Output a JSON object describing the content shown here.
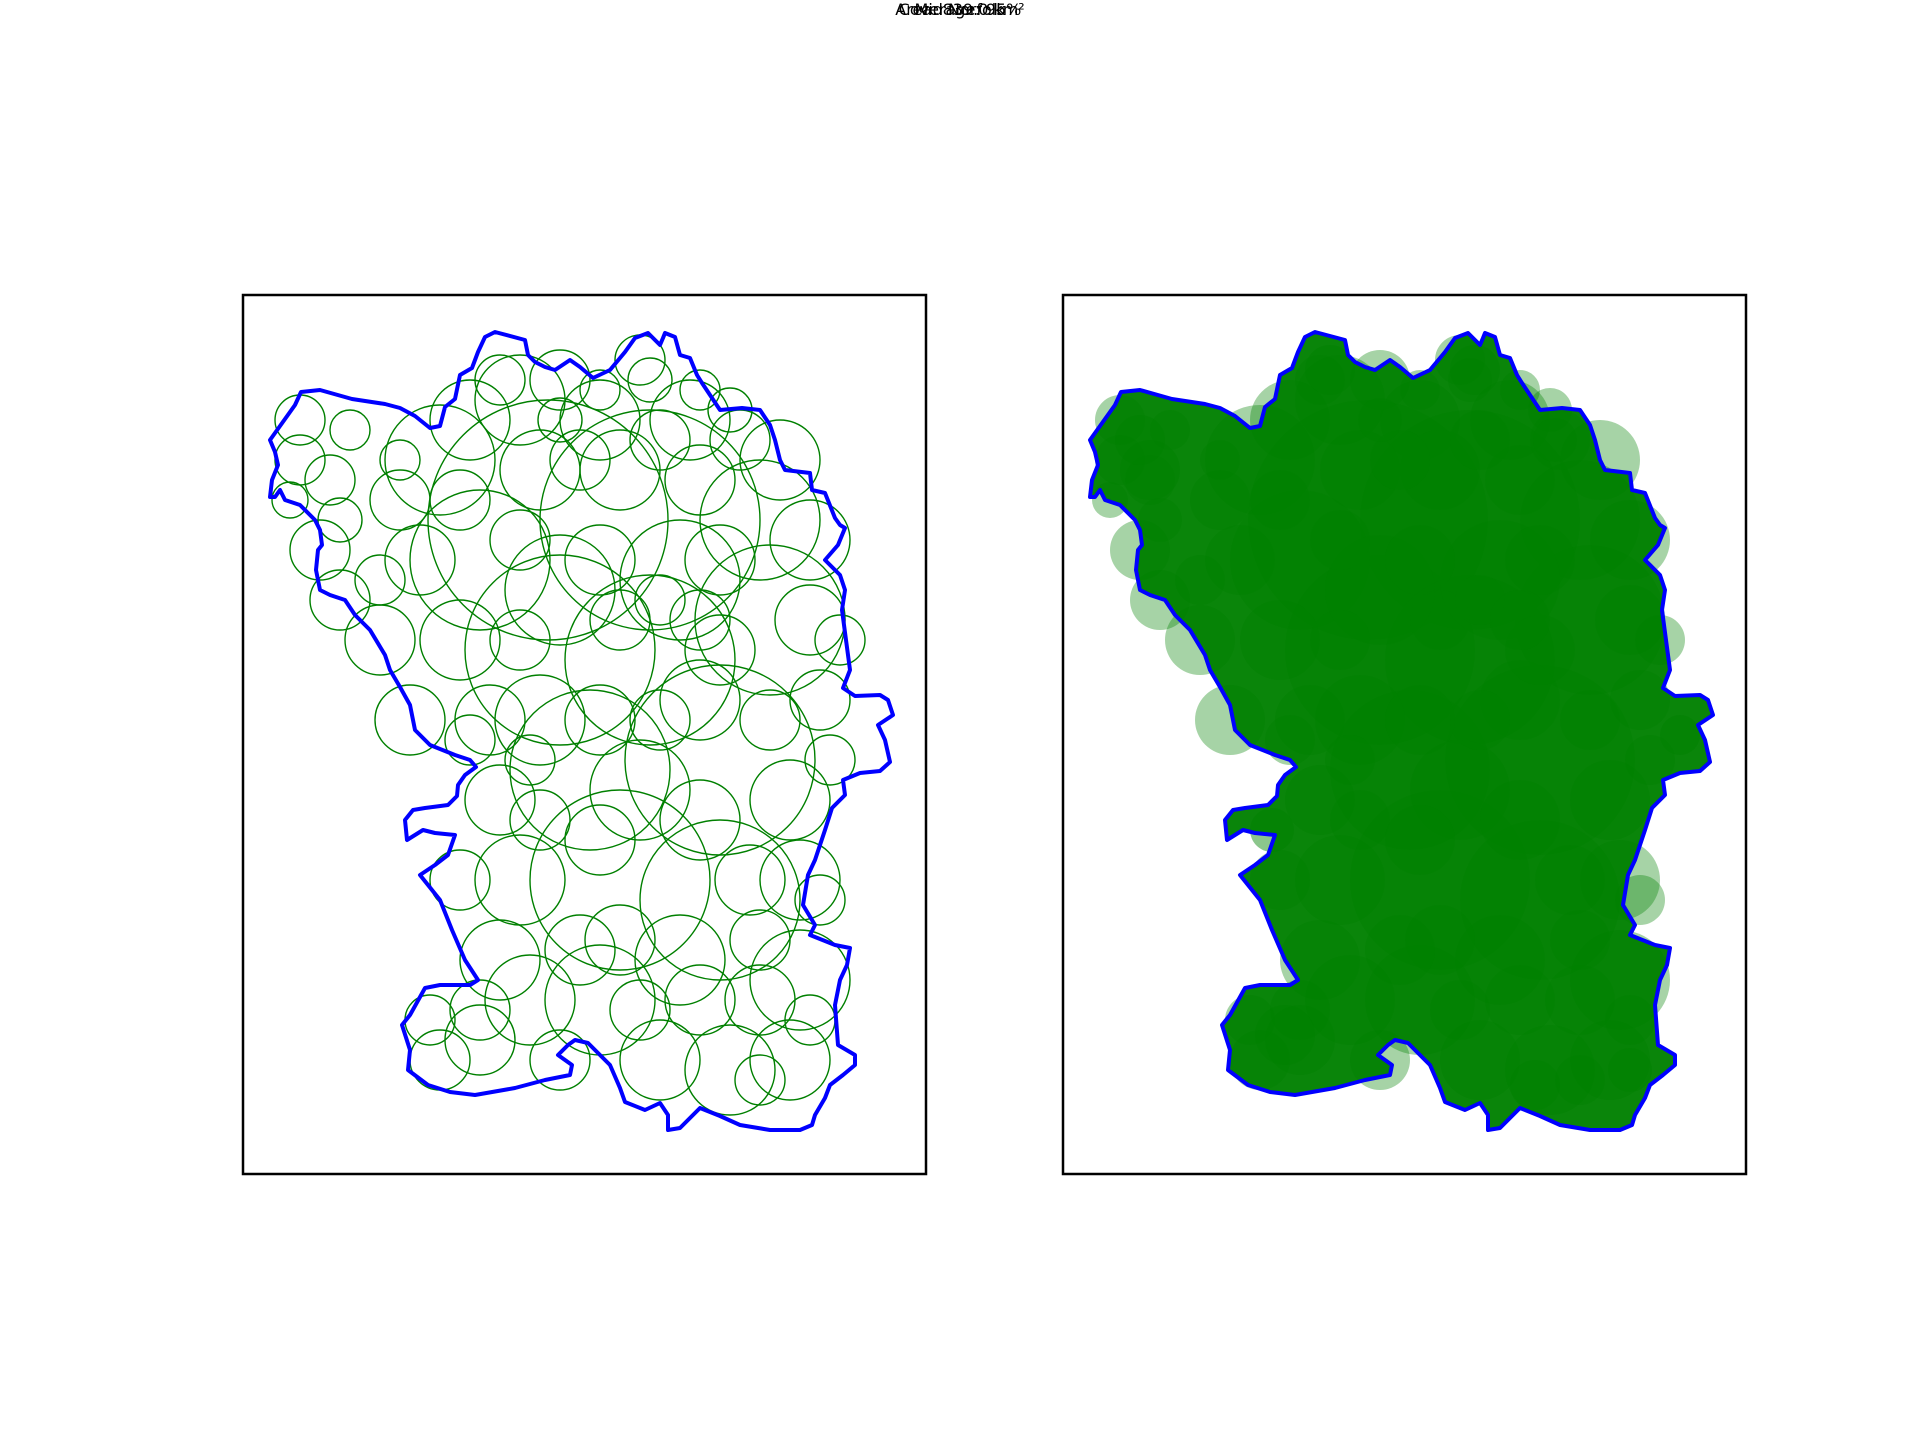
{
  "figure": {
    "title": "Mid Norfolk",
    "coverage_text": "Coverage: 95%",
    "area_text": "Area: 839.0 km²"
  },
  "panels": [
    {
      "name": "outline-circles",
      "circle_style": "outline"
    },
    {
      "name": "filled-circles",
      "circle_style": "filled"
    }
  ],
  "colors": {
    "boundary": "#0000ff",
    "circle": "#008000",
    "frame": "#000000",
    "background": "#ffffff"
  }
}
